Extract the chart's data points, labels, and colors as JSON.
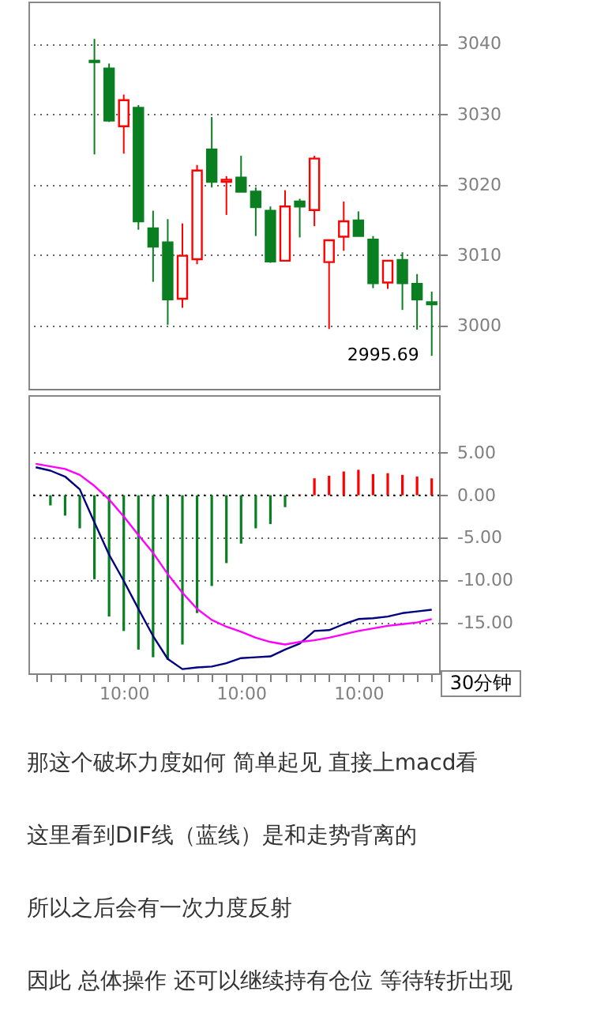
{
  "chart_data": [
    {
      "type": "candlestick",
      "categories": [
        null,
        null,
        null,
        null,
        null,
        null,
        null,
        null,
        null,
        null,
        null,
        null,
        null,
        null,
        null,
        null,
        null,
        null,
        null,
        null,
        null,
        null,
        null,
        null,
        null,
        null,
        null,
        null
      ],
      "ohlc": [
        null,
        null,
        null,
        null,
        [
          3037.6,
          3040.7,
          3024.3,
          3037.4
        ],
        [
          3036.5,
          3037.2,
          3028.9,
          3029.1
        ],
        [
          3028.3,
          3032.8,
          3024.4,
          3032.0
        ],
        [
          3030.9,
          3031.3,
          3013.6,
          3014.8
        ],
        [
          3013.8,
          3016.3,
          3006.2,
          3011.2
        ],
        [
          3011.8,
          3015.1,
          3000.1,
          3003.7
        ],
        [
          3003.8,
          3014.5,
          3002.5,
          3009.9
        ],
        [
          3009.4,
          3022.8,
          3008.7,
          3022.0
        ],
        [
          3025.0,
          3029.6,
          3019.6,
          3020.4
        ],
        [
          3020.4,
          3021.2,
          3015.7,
          3020.7
        ],
        [
          3021.0,
          3024.1,
          3019.0,
          3019.0
        ],
        [
          3019.0,
          3019.6,
          3012.7,
          3016.8
        ],
        [
          3016.3,
          3016.9,
          3008.9,
          3009.1
        ],
        [
          3009.2,
          3019.2,
          3009.2,
          3016.9
        ],
        [
          3017.6,
          3018.0,
          3012.5,
          3016.9
        ],
        [
          3016.4,
          3024.1,
          3014.1,
          3023.7
        ],
        [
          3009.0,
          3012.1,
          2999.5,
          3012.1
        ],
        [
          3012.6,
          3017.6,
          3010.6,
          3014.8
        ],
        [
          3014.9,
          3016.2,
          3012.7,
          3012.7
        ],
        [
          3012.2,
          3012.7,
          3005.3,
          3006.0
        ],
        [
          3006.1,
          3009.2,
          3005.2,
          3009.2
        ],
        [
          3009.3,
          3010.4,
          3002.2,
          3006.0
        ],
        [
          3005.9,
          3007.3,
          2999.4,
          3003.7
        ],
        [
          3003.3,
          3004.8,
          2995.69,
          3003.0
        ]
      ],
      "colors": [
        null,
        null,
        null,
        null,
        "#0a7f22",
        "#0a7f22",
        "#ff0000",
        "#0a7f22",
        "#0a7f22",
        "#0a7f22",
        "#ff0000",
        "#ff0000",
        "#0a7f22",
        "#ff0000",
        "#0a7f22",
        "#0a7f22",
        "#0a7f22",
        "#ff0000",
        "#0a7f22",
        "#ff0000",
        "#ff0000",
        "#ff0000",
        "#0a7f22",
        "#0a7f22",
        "#ff0000",
        "#0a7f22",
        "#0a7f22",
        "#0a7f22"
      ],
      "ylim": [
        2991,
        3046
      ],
      "yticks": [
        3000,
        3010,
        3020,
        3030,
        3040
      ],
      "grid": "y",
      "tick_labels": "y",
      "annotations": [
        "2995.69"
      ]
    },
    {
      "type": "bar",
      "categories": [
        null,
        null,
        null,
        null,
        null,
        null,
        "10:00",
        null,
        null,
        null,
        null,
        null,
        null,
        null,
        "10:00",
        null,
        null,
        null,
        null,
        null,
        null,
        null,
        "10:00",
        null,
        null,
        null,
        null,
        null
      ],
      "series": [
        {
          "type": "bar",
          "colors": [
            null,
            "#0a7f22",
            "#0a7f22",
            "#0a7f22",
            "#0a7f22",
            "#0a7f22",
            "#0a7f22",
            "#0a7f22",
            "#0a7f22",
            "#0a7f22",
            "#0a7f22",
            "#0a7f22",
            "#0a7f22",
            "#0a7f22",
            "#0a7f22",
            "#0a7f22",
            "#0a7f22",
            "#0a7f22",
            "#ff0000",
            "#ff0000",
            "#ff0000",
            "#ff0000",
            "#ff0000",
            "#ff0000",
            "#ff0000",
            "#ff0000",
            "#ff0000",
            "#ff0000"
          ],
          "values": [
            null,
            -1.2,
            -2.4,
            -3.9,
            -9.9,
            -14.3,
            -16.0,
            -18.2,
            -19.1,
            -19.4,
            -17.6,
            -13.9,
            -10.7,
            -8.0,
            -5.7,
            -3.9,
            -3.4,
            -1.4,
            0.1,
            2.0,
            2.3,
            2.8,
            3.0,
            2.5,
            2.6,
            2.4,
            2.2,
            2.0
          ]
        },
        {
          "type": "line",
          "color": "#000080",
          "values": [
            3.3,
            2.9,
            2.2,
            0.7,
            -3.2,
            -7.0,
            -10.1,
            -13.4,
            -16.6,
            -19.3,
            -20.5,
            -20.3,
            -20.2,
            -19.8,
            -19.2,
            -19.1,
            -19.0,
            -18.2,
            -17.5,
            -16.0,
            -15.9,
            -15.2,
            -14.6,
            -14.5,
            -14.3,
            -13.9,
            -13.7,
            -13.5
          ]
        },
        {
          "type": "line",
          "color": "#ff00ff",
          "values": [
            3.7,
            3.4,
            3.1,
            2.4,
            1.1,
            -0.5,
            -2.5,
            -4.7,
            -6.8,
            -9.3,
            -11.5,
            -13.4,
            -14.7,
            -15.5,
            -16.1,
            -16.8,
            -17.3,
            -17.6,
            -17.3,
            -17.1,
            -16.8,
            -16.4,
            -16.0,
            -15.7,
            -15.4,
            -15.2,
            -15.0,
            -14.6
          ]
        }
      ],
      "ylim": [
        -21,
        11.8
      ],
      "yticks": [
        {
          "value": 5,
          "label": "5.00"
        },
        {
          "value": 0,
          "label": "0.00"
        },
        {
          "value": -5,
          "label": "-5.00"
        },
        {
          "value": -10,
          "label": "-10.00"
        },
        {
          "value": -15,
          "label": "-15.00"
        }
      ],
      "grid": "y",
      "ref_lines": [
        {
          "axis": "y",
          "value": 0,
          "color": "#000000",
          "line_style": "dotted"
        }
      ],
      "annotations": [
        "30分钟",
        "那这个破坏力度如何 简单起见 直接上macd看",
        "这里看到DIF线（蓝线）是和走势背离的",
        "所以之后会有一次力度反射",
        "因此 总体操作 还可以继续持有仓位 等待转折出现"
      ]
    }
  ]
}
